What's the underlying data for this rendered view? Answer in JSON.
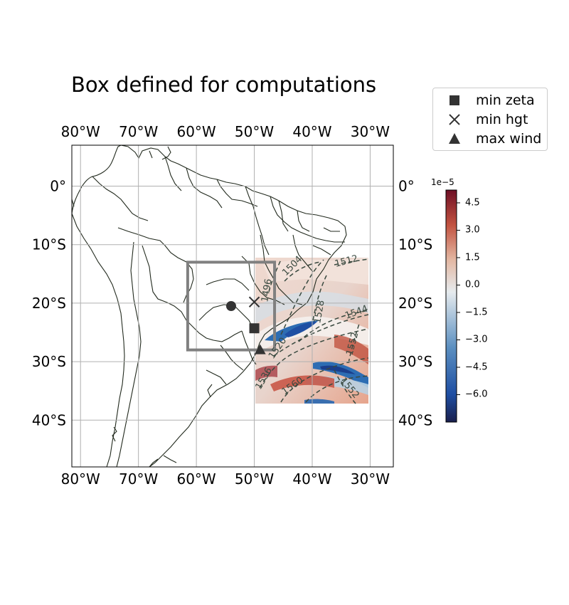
{
  "title": "Box defined for computations",
  "map": {
    "lon_ticks": [
      "80°W",
      "70°W",
      "60°W",
      "50°W",
      "40°W",
      "30°W"
    ],
    "lat_ticks": [
      "0°",
      "10°S",
      "20°S",
      "30°S",
      "40°S"
    ],
    "extent_lon": [
      -81.5,
      -26
    ],
    "extent_lat": [
      7,
      -48
    ],
    "computation_box": {
      "lon": [
        -61.5,
        -46.5
      ],
      "lat": [
        -13,
        -28
      ],
      "color": "#808080"
    },
    "markers": [
      {
        "name": "min zeta",
        "symbol": "square",
        "lon": -50,
        "lat": -24.3
      },
      {
        "name": "min hgt",
        "symbol": "x",
        "lon": -50,
        "lat": -19.8
      },
      {
        "name": "max wind",
        "symbol": "triangle",
        "lon": -49,
        "lat": -28
      },
      {
        "name": "",
        "symbol": "circle",
        "lon": -54,
        "lat": -20.5
      }
    ],
    "field_region": {
      "lon": [
        -50,
        -31
      ],
      "lat": [
        -12.5,
        -37.5
      ]
    },
    "contour_labels": [
      "1512",
      "1504",
      "1496",
      "1528",
      "1544",
      "1520",
      "1536",
      "1552",
      "1560",
      "1552"
    ]
  },
  "legend": {
    "items": [
      {
        "label": "min zeta",
        "symbol": "square"
      },
      {
        "label": "min hgt",
        "symbol": "x"
      },
      {
        "label": "max wind",
        "symbol": "triangle"
      }
    ]
  },
  "colorbar": {
    "exponent": "1e−5",
    "ticks": [
      "4.5",
      "3.0",
      "1.5",
      "0.0",
      "−1.5",
      "−3.0",
      "−4.5",
      "−6.0"
    ],
    "range": [
      -7.5,
      5.2
    ],
    "colors": [
      "#1a1f4d",
      "#1f4fa3",
      "#5b8fc0",
      "#dfe7ec",
      "#d9a890",
      "#b8453a",
      "#7a1026"
    ]
  }
}
